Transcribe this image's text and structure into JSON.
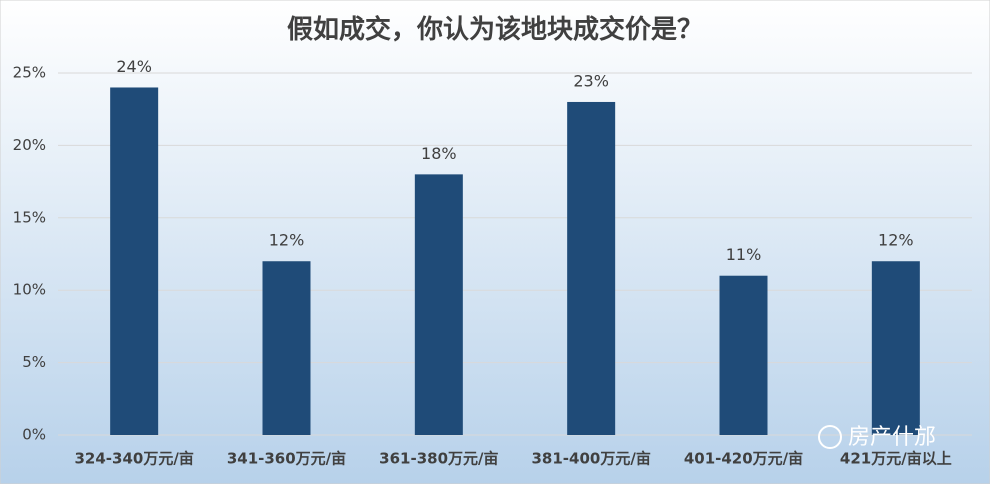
{
  "chart_data": {
    "type": "bar",
    "title": "假如成交，你认为该地块成交价是？",
    "categories": [
      "324-340万元/亩",
      "341-360万元/亩",
      "361-380万元/亩",
      "381-400万元/亩",
      "401-420万元/亩",
      "421万元/亩以上"
    ],
    "values": [
      24,
      12,
      18,
      23,
      11,
      12
    ],
    "value_labels": [
      "24%",
      "12%",
      "18%",
      "23%",
      "11%",
      "12%"
    ],
    "color": "#1f4b78",
    "ylim": [
      0,
      25
    ],
    "yticks": [
      {
        "value": 0,
        "label": "0%"
      },
      {
        "value": 5,
        "label": "5%"
      },
      {
        "value": 10,
        "label": "10%"
      },
      {
        "value": 15,
        "label": "15%"
      },
      {
        "value": 20,
        "label": "20%"
      },
      {
        "value": 25,
        "label": "25%"
      }
    ],
    "grid": true
  },
  "watermark": "房产什邡"
}
